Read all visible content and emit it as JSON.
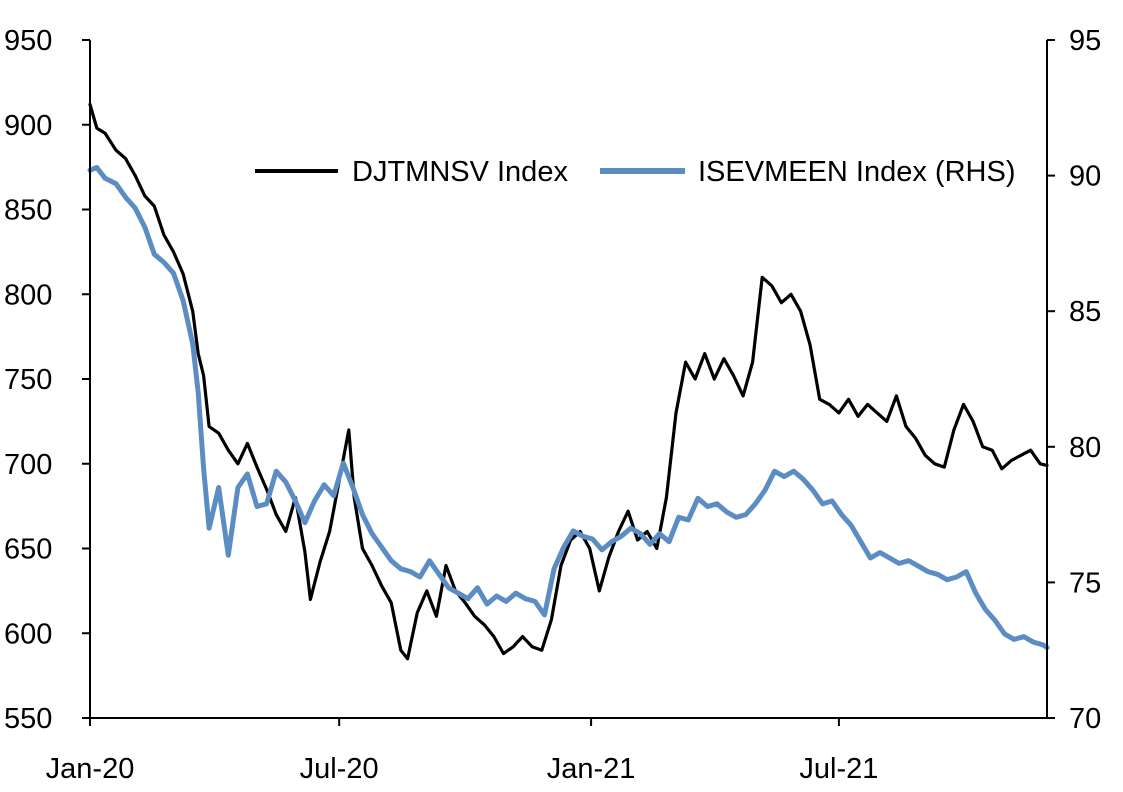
{
  "chart_data": {
    "type": "line",
    "title": "",
    "xlabel": "",
    "ylabel": "",
    "x_ticks": [
      "Jan-20",
      "Jul-20",
      "Jan-21",
      "Jul-21"
    ],
    "xlim": [
      "2020-01-01",
      "2021-11-30"
    ],
    "ylim_left": [
      550,
      950
    ],
    "ylim_right": [
      70,
      95
    ],
    "yticks_left": [
      "550",
      "600",
      "650",
      "700",
      "750",
      "800",
      "850",
      "900",
      "950"
    ],
    "yticks_right": [
      "70",
      "75",
      "80",
      "85",
      "90",
      "95"
    ],
    "grid": false,
    "legend_position": "top-right",
    "series": [
      {
        "name": "DJTMNSV Index",
        "axis": "left",
        "color": "#000000",
        "points": [
          [
            "2020-01-01",
            912
          ],
          [
            "2020-01-06",
            898
          ],
          [
            "2020-01-12",
            895
          ],
          [
            "2020-01-20",
            885
          ],
          [
            "2020-01-27",
            880
          ],
          [
            "2020-02-03",
            870
          ],
          [
            "2020-02-10",
            858
          ],
          [
            "2020-02-17",
            852
          ],
          [
            "2020-02-24",
            835
          ],
          [
            "2020-03-02",
            825
          ],
          [
            "2020-03-09",
            812
          ],
          [
            "2020-03-16",
            790
          ],
          [
            "2020-03-20",
            765
          ],
          [
            "2020-03-24",
            752
          ],
          [
            "2020-03-28",
            722
          ],
          [
            "2020-04-04",
            718
          ],
          [
            "2020-04-11",
            708
          ],
          [
            "2020-04-18",
            700
          ],
          [
            "2020-04-25",
            712
          ],
          [
            "2020-05-02",
            698
          ],
          [
            "2020-05-09",
            685
          ],
          [
            "2020-05-16",
            670
          ],
          [
            "2020-05-23",
            660
          ],
          [
            "2020-05-30",
            680
          ],
          [
            "2020-06-06",
            648
          ],
          [
            "2020-06-10",
            620
          ],
          [
            "2020-06-17",
            642
          ],
          [
            "2020-06-24",
            660
          ],
          [
            "2020-07-01",
            690
          ],
          [
            "2020-07-08",
            720
          ],
          [
            "2020-07-12",
            680
          ],
          [
            "2020-07-18",
            650
          ],
          [
            "2020-07-25",
            640
          ],
          [
            "2020-08-01",
            628
          ],
          [
            "2020-08-08",
            618
          ],
          [
            "2020-08-15",
            590
          ],
          [
            "2020-08-20",
            585
          ],
          [
            "2020-08-27",
            612
          ],
          [
            "2020-09-03",
            625
          ],
          [
            "2020-09-10",
            610
          ],
          [
            "2020-09-17",
            640
          ],
          [
            "2020-09-24",
            625
          ],
          [
            "2020-10-01",
            618
          ],
          [
            "2020-10-08",
            610
          ],
          [
            "2020-10-15",
            605
          ],
          [
            "2020-10-22",
            598
          ],
          [
            "2020-10-29",
            588
          ],
          [
            "2020-11-05",
            592
          ],
          [
            "2020-11-12",
            598
          ],
          [
            "2020-11-19",
            592
          ],
          [
            "2020-11-26",
            590
          ],
          [
            "2020-12-03",
            608
          ],
          [
            "2020-12-10",
            640
          ],
          [
            "2020-12-17",
            655
          ],
          [
            "2020-12-24",
            660
          ],
          [
            "2020-12-31",
            650
          ],
          [
            "2021-01-07",
            625
          ],
          [
            "2021-01-14",
            645
          ],
          [
            "2021-01-21",
            660
          ],
          [
            "2021-01-28",
            672
          ],
          [
            "2021-02-04",
            655
          ],
          [
            "2021-02-11",
            660
          ],
          [
            "2021-02-18",
            650
          ],
          [
            "2021-02-25",
            680
          ],
          [
            "2021-03-04",
            730
          ],
          [
            "2021-03-11",
            760
          ],
          [
            "2021-03-18",
            750
          ],
          [
            "2021-03-25",
            765
          ],
          [
            "2021-04-01",
            750
          ],
          [
            "2021-04-08",
            762
          ],
          [
            "2021-04-15",
            752
          ],
          [
            "2021-04-22",
            740
          ],
          [
            "2021-04-29",
            760
          ],
          [
            "2021-05-06",
            810
          ],
          [
            "2021-05-13",
            805
          ],
          [
            "2021-05-20",
            795
          ],
          [
            "2021-05-27",
            800
          ],
          [
            "2021-06-03",
            790
          ],
          [
            "2021-06-10",
            770
          ],
          [
            "2021-06-17",
            738
          ],
          [
            "2021-06-24",
            735
          ],
          [
            "2021-07-01",
            730
          ],
          [
            "2021-07-08",
            738
          ],
          [
            "2021-07-15",
            728
          ],
          [
            "2021-07-22",
            735
          ],
          [
            "2021-07-29",
            730
          ],
          [
            "2021-08-05",
            725
          ],
          [
            "2021-08-12",
            740
          ],
          [
            "2021-08-19",
            722
          ],
          [
            "2021-08-26",
            715
          ],
          [
            "2021-09-02",
            705
          ],
          [
            "2021-09-09",
            700
          ],
          [
            "2021-09-16",
            698
          ],
          [
            "2021-09-23",
            720
          ],
          [
            "2021-09-30",
            735
          ],
          [
            "2021-10-07",
            725
          ],
          [
            "2021-10-14",
            710
          ],
          [
            "2021-10-21",
            708
          ],
          [
            "2021-10-28",
            697
          ],
          [
            "2021-11-04",
            702
          ],
          [
            "2021-11-11",
            705
          ],
          [
            "2021-11-18",
            708
          ],
          [
            "2021-11-25",
            700
          ],
          [
            "2021-11-30",
            699
          ]
        ]
      },
      {
        "name": "ISEVMEEN Index (RHS)",
        "axis": "right",
        "color": "#5b8dc3",
        "points": [
          [
            "2020-01-01",
            90.2
          ],
          [
            "2020-01-06",
            90.3
          ],
          [
            "2020-01-12",
            89.9
          ],
          [
            "2020-01-20",
            89.7
          ],
          [
            "2020-01-27",
            89.2
          ],
          [
            "2020-02-03",
            88.8
          ],
          [
            "2020-02-10",
            88.1
          ],
          [
            "2020-02-17",
            87.1
          ],
          [
            "2020-02-24",
            86.8
          ],
          [
            "2020-03-02",
            86.4
          ],
          [
            "2020-03-09",
            85.4
          ],
          [
            "2020-03-16",
            83.8
          ],
          [
            "2020-03-20",
            82.0
          ],
          [
            "2020-03-24",
            79.2
          ],
          [
            "2020-03-28",
            77.0
          ],
          [
            "2020-04-04",
            78.5
          ],
          [
            "2020-04-11",
            76.0
          ],
          [
            "2020-04-18",
            78.5
          ],
          [
            "2020-04-25",
            79.0
          ],
          [
            "2020-05-02",
            77.8
          ],
          [
            "2020-05-09",
            77.9
          ],
          [
            "2020-05-16",
            79.1
          ],
          [
            "2020-05-23",
            78.7
          ],
          [
            "2020-05-30",
            78.0
          ],
          [
            "2020-06-06",
            77.2
          ],
          [
            "2020-06-13",
            78.0
          ],
          [
            "2020-06-20",
            78.6
          ],
          [
            "2020-06-27",
            78.2
          ],
          [
            "2020-07-04",
            79.4
          ],
          [
            "2020-07-11",
            78.5
          ],
          [
            "2020-07-18",
            77.5
          ],
          [
            "2020-07-25",
            76.8
          ],
          [
            "2020-08-01",
            76.3
          ],
          [
            "2020-08-08",
            75.8
          ],
          [
            "2020-08-15",
            75.5
          ],
          [
            "2020-08-22",
            75.4
          ],
          [
            "2020-08-29",
            75.2
          ],
          [
            "2020-09-05",
            75.8
          ],
          [
            "2020-09-12",
            75.3
          ],
          [
            "2020-09-19",
            74.8
          ],
          [
            "2020-09-26",
            74.6
          ],
          [
            "2020-10-03",
            74.4
          ],
          [
            "2020-10-10",
            74.8
          ],
          [
            "2020-10-17",
            74.2
          ],
          [
            "2020-10-24",
            74.5
          ],
          [
            "2020-10-31",
            74.3
          ],
          [
            "2020-11-07",
            74.6
          ],
          [
            "2020-11-14",
            74.4
          ],
          [
            "2020-11-21",
            74.3
          ],
          [
            "2020-11-28",
            73.8
          ],
          [
            "2020-12-05",
            75.5
          ],
          [
            "2020-12-12",
            76.3
          ],
          [
            "2020-12-19",
            76.9
          ],
          [
            "2020-12-26",
            76.7
          ],
          [
            "2021-01-02",
            76.6
          ],
          [
            "2021-01-09",
            76.2
          ],
          [
            "2021-01-16",
            76.5
          ],
          [
            "2021-01-23",
            76.7
          ],
          [
            "2021-01-30",
            77.0
          ],
          [
            "2021-02-06",
            76.8
          ],
          [
            "2021-02-13",
            76.4
          ],
          [
            "2021-02-20",
            76.8
          ],
          [
            "2021-02-27",
            76.5
          ],
          [
            "2021-03-06",
            77.4
          ],
          [
            "2021-03-13",
            77.3
          ],
          [
            "2021-03-20",
            78.1
          ],
          [
            "2021-03-27",
            77.8
          ],
          [
            "2021-04-03",
            77.9
          ],
          [
            "2021-04-10",
            77.6
          ],
          [
            "2021-04-17",
            77.4
          ],
          [
            "2021-04-24",
            77.5
          ],
          [
            "2021-05-01",
            77.9
          ],
          [
            "2021-05-08",
            78.4
          ],
          [
            "2021-05-15",
            79.1
          ],
          [
            "2021-05-22",
            78.9
          ],
          [
            "2021-05-29",
            79.1
          ],
          [
            "2021-06-05",
            78.8
          ],
          [
            "2021-06-12",
            78.4
          ],
          [
            "2021-06-19",
            77.9
          ],
          [
            "2021-06-26",
            78.0
          ],
          [
            "2021-07-03",
            77.5
          ],
          [
            "2021-07-10",
            77.1
          ],
          [
            "2021-07-17",
            76.5
          ],
          [
            "2021-07-24",
            75.9
          ],
          [
            "2021-07-31",
            76.1
          ],
          [
            "2021-08-07",
            75.9
          ],
          [
            "2021-08-14",
            75.7
          ],
          [
            "2021-08-21",
            75.8
          ],
          [
            "2021-08-28",
            75.6
          ],
          [
            "2021-09-04",
            75.4
          ],
          [
            "2021-09-11",
            75.3
          ],
          [
            "2021-09-18",
            75.1
          ],
          [
            "2021-09-25",
            75.2
          ],
          [
            "2021-10-02",
            75.4
          ],
          [
            "2021-10-09",
            74.6
          ],
          [
            "2021-10-16",
            74.0
          ],
          [
            "2021-10-23",
            73.6
          ],
          [
            "2021-10-30",
            73.1
          ],
          [
            "2021-11-06",
            72.9
          ],
          [
            "2021-11-13",
            73.0
          ],
          [
            "2021-11-20",
            72.8
          ],
          [
            "2021-11-27",
            72.7
          ],
          [
            "2021-11-30",
            72.6
          ]
        ]
      }
    ]
  }
}
